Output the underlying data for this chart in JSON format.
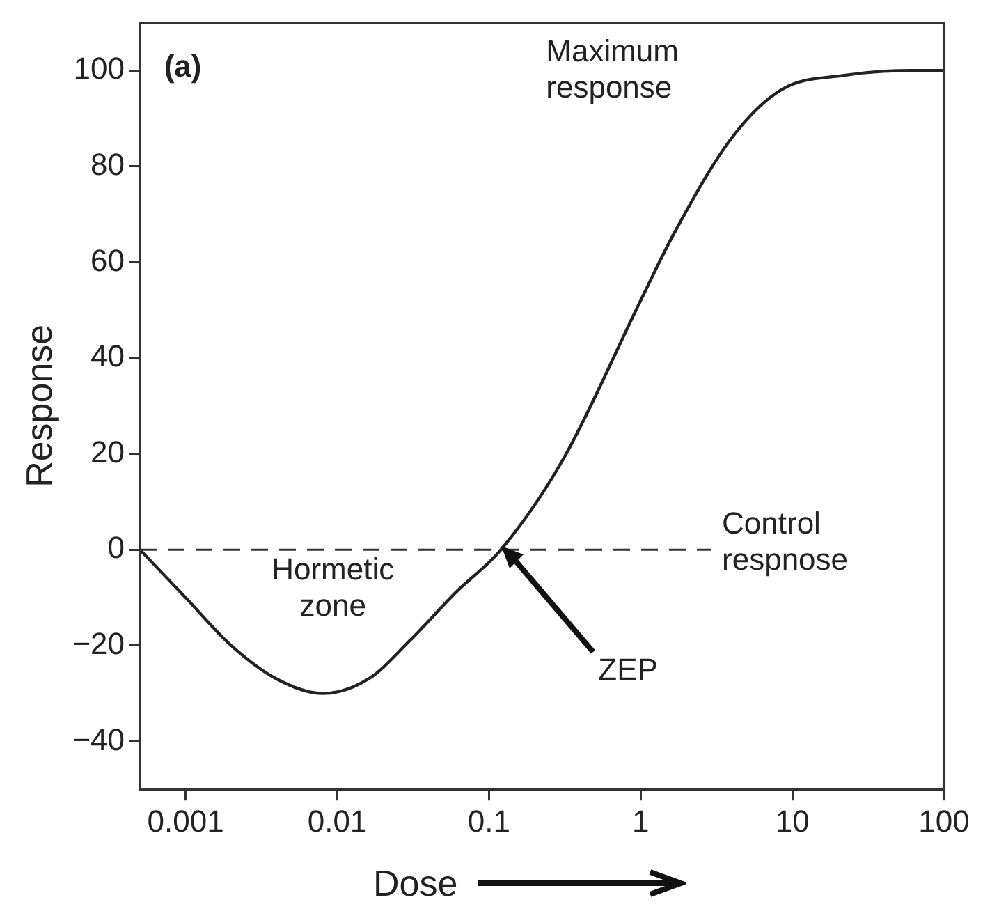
{
  "chart_data": {
    "type": "line",
    "xlabel": "Dose",
    "ylabel": "Response",
    "log": "x",
    "grid": false,
    "legend": false,
    "marker": "none",
    "line_style": "solid",
    "xlim": [
      0.0005,
      100
    ],
    "xticks": [
      0.001,
      0.01,
      0.1,
      1,
      10,
      100
    ],
    "ylim": [
      -50,
      110
    ],
    "yticks": [
      -40,
      -20,
      0,
      20,
      40,
      60,
      80,
      100
    ],
    "series": [
      {
        "color": "#222222",
        "x": [
          0.0005,
          0.001,
          0.002,
          0.004,
          0.008,
          0.016,
          0.03,
          0.06,
          0.12,
          0.31,
          1,
          1.66,
          4,
          8.5,
          22,
          60,
          100
        ],
        "values": [
          0,
          -10,
          -20,
          -27,
          -30,
          -27,
          -19,
          -9,
          0,
          19,
          52,
          66,
          86,
          96,
          99,
          100,
          100
        ]
      }
    ],
    "ref_lines": [
      {
        "axis": "y",
        "value": 0,
        "label": "Control respnose",
        "line_style": "dashed",
        "color": "#333333"
      }
    ],
    "annotations": [
      "(a)",
      "Maximum response",
      "Hormetic zone",
      "ZEP"
    ]
  }
}
